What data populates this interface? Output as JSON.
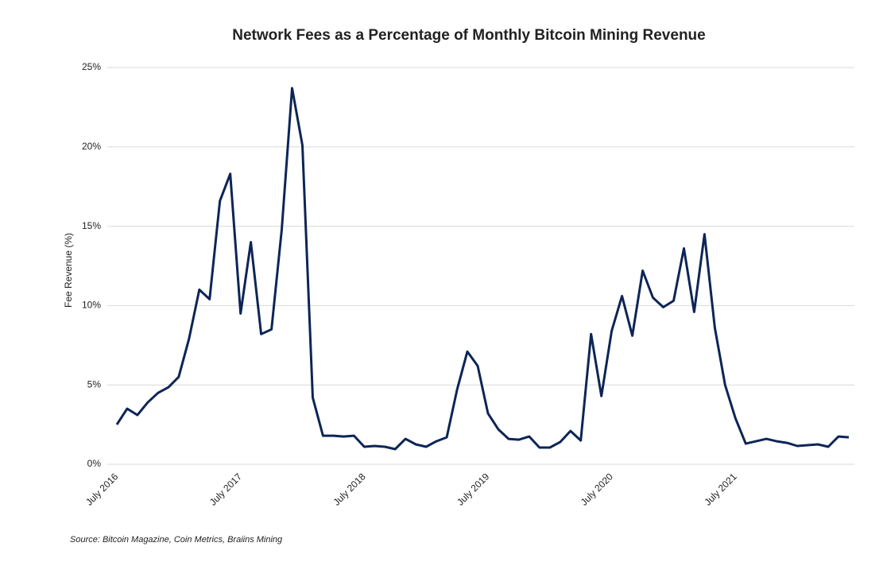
{
  "chart_data": {
    "type": "line",
    "title": "Network Fees as a Percentage of Monthly Bitcoin Mining Revenue",
    "ylabel": "Fee Revenue (%)",
    "source": "Source: Bitcoin Magazine, Coin Metrics, Braiins Mining",
    "categories": [
      "July 2016",
      null,
      null,
      null,
      null,
      null,
      null,
      null,
      null,
      null,
      null,
      null,
      "July 2017",
      null,
      null,
      null,
      null,
      null,
      null,
      null,
      null,
      null,
      null,
      null,
      "July 2018",
      null,
      null,
      null,
      null,
      null,
      null,
      null,
      null,
      null,
      null,
      null,
      "July 2019",
      null,
      null,
      null,
      null,
      null,
      null,
      null,
      null,
      null,
      null,
      null,
      "July 2020",
      null,
      null,
      null,
      null,
      null,
      null,
      null,
      null,
      null,
      null,
      null,
      "July 2021",
      null,
      null,
      null,
      null,
      null,
      null,
      null,
      null,
      null,
      null,
      null
    ],
    "series": [
      {
        "name": "Fee Revenue",
        "color": "#0d2556",
        "values": [
          2.5,
          3.5,
          3.1,
          3.9,
          4.5,
          4.85,
          5.5,
          7.9,
          11.0,
          10.4,
          16.6,
          18.3,
          9.5,
          14.0,
          8.2,
          8.5,
          14.8,
          23.7,
          20.1,
          4.2,
          1.8,
          1.8,
          1.75,
          1.8,
          1.1,
          1.15,
          1.1,
          0.95,
          1.6,
          1.25,
          1.1,
          1.45,
          1.7,
          4.7,
          7.1,
          6.2,
          3.2,
          2.2,
          1.6,
          1.55,
          1.75,
          1.05,
          1.05,
          1.4,
          2.1,
          1.5,
          8.2,
          4.3,
          8.4,
          10.6,
          8.1,
          12.2,
          10.5,
          9.9,
          10.3,
          13.6,
          9.6,
          14.5,
          8.6,
          5.0,
          2.9,
          1.3,
          1.45,
          1.6,
          1.45,
          1.35,
          1.15,
          1.2,
          1.25,
          1.1,
          1.75,
          1.7
        ]
      }
    ],
    "ylim": [
      0,
      25
    ],
    "yticks": [
      {
        "value": 0,
        "label": "0%"
      },
      {
        "value": 5,
        "label": "5%"
      },
      {
        "value": 10,
        "label": "10%"
      },
      {
        "value": 15,
        "label": "15%"
      },
      {
        "value": 20,
        "label": "20%"
      },
      {
        "value": 25,
        "label": "25%"
      }
    ],
    "grid": true
  }
}
